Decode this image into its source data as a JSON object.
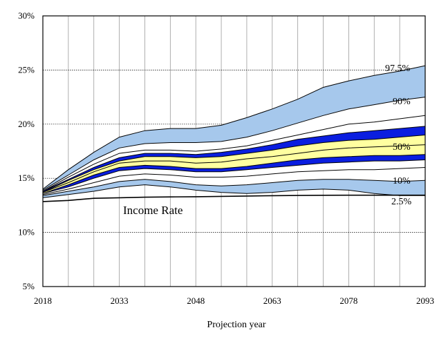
{
  "chart_data": {
    "type": "area",
    "title": "",
    "xlabel": "Projection year",
    "ylabel": "",
    "xlim": [
      2018,
      2093
    ],
    "ylim": [
      5,
      30
    ],
    "x_ticks": [
      "2018",
      "2033",
      "2048",
      "2063",
      "2078",
      "2093"
    ],
    "y_ticks": [
      "5%",
      "10%",
      "15%",
      "20%",
      "25%",
      "30%"
    ],
    "years": [
      2018,
      2023,
      2028,
      2033,
      2038,
      2043,
      2048,
      2053,
      2058,
      2063,
      2068,
      2073,
      2078,
      2083,
      2088,
      2093
    ],
    "series": [
      {
        "name": "97.5%",
        "values": [
          14.0,
          15.8,
          17.4,
          18.8,
          19.4,
          19.6,
          19.6,
          19.9,
          20.6,
          21.4,
          22.3,
          23.4,
          24.0,
          24.5,
          24.9,
          25.4
        ]
      },
      {
        "name": "90%",
        "values": [
          13.9,
          15.3,
          16.7,
          17.8,
          18.2,
          18.3,
          18.3,
          18.4,
          18.8,
          19.4,
          20.1,
          20.8,
          21.4,
          21.8,
          22.2,
          22.5
        ]
      },
      {
        "name": "fine_upper_c",
        "values": [
          13.8,
          15.1,
          16.3,
          17.3,
          17.6,
          17.6,
          17.5,
          17.7,
          18.0,
          18.5,
          19.0,
          19.5,
          20.0,
          20.2,
          20.5,
          20.8
        ]
      },
      {
        "name": "fine_upper_b",
        "values": [
          13.8,
          14.9,
          16.0,
          16.9,
          17.3,
          17.3,
          17.2,
          17.4,
          17.7,
          18.1,
          18.6,
          18.9,
          19.2,
          19.4,
          19.6,
          19.8
        ]
      },
      {
        "name": "fine_upper_a",
        "values": [
          13.7,
          14.8,
          15.8,
          16.6,
          17.0,
          17.0,
          16.9,
          17.0,
          17.3,
          17.6,
          18.0,
          18.3,
          18.5,
          18.6,
          18.8,
          19.0
        ]
      },
      {
        "name": "50%",
        "values": [
          13.7,
          14.6,
          15.6,
          16.4,
          16.6,
          16.6,
          16.4,
          16.5,
          16.8,
          17.0,
          17.3,
          17.6,
          17.8,
          17.9,
          18.0,
          18.1
        ]
      },
      {
        "name": "fine_lower_a",
        "values": [
          13.6,
          14.4,
          15.3,
          16.0,
          16.2,
          16.1,
          15.9,
          15.9,
          16.1,
          16.4,
          16.7,
          16.9,
          17.0,
          17.1,
          17.1,
          17.2
        ]
      },
      {
        "name": "fine_lower_b",
        "values": [
          13.6,
          14.2,
          15.0,
          15.7,
          15.9,
          15.8,
          15.6,
          15.6,
          15.8,
          16.0,
          16.2,
          16.4,
          16.5,
          16.6,
          16.6,
          16.7
        ]
      },
      {
        "name": "fine_lower_c",
        "values": [
          13.5,
          14.0,
          14.6,
          15.2,
          15.4,
          15.3,
          15.1,
          15.1,
          15.2,
          15.4,
          15.6,
          15.7,
          15.8,
          15.8,
          15.9,
          16.0
        ]
      },
      {
        "name": "10%",
        "values": [
          13.4,
          13.8,
          14.2,
          14.7,
          14.9,
          14.7,
          14.4,
          14.3,
          14.4,
          14.6,
          14.8,
          14.9,
          14.9,
          14.8,
          14.7,
          14.8
        ]
      },
      {
        "name": "2.5%",
        "values": [
          13.2,
          13.5,
          13.8,
          14.2,
          14.4,
          14.2,
          13.9,
          13.7,
          13.6,
          13.7,
          13.9,
          14.0,
          13.9,
          13.6,
          13.4,
          13.4
        ]
      },
      {
        "name": "Income Rate",
        "values": [
          12.85,
          12.95,
          13.15,
          13.2,
          13.25,
          13.28,
          13.3,
          13.33,
          13.36,
          13.39,
          13.41,
          13.43,
          13.44,
          13.44,
          13.44,
          13.44
        ]
      }
    ],
    "bands": [
      {
        "from": "2.5%",
        "to": "97.5%",
        "color": "#a6c8ec"
      },
      {
        "from": "10%",
        "to": "90%",
        "color": "#ffffff"
      },
      {
        "from": "fine_lower_b",
        "to": "fine_upper_b",
        "color": "#0a1ee0"
      },
      {
        "from": "fine_lower_a",
        "to": "fine_upper_a",
        "color": "#ffffa0"
      }
    ],
    "annotations": {
      "p975": "97.5%",
      "p90": "90%",
      "p50": "50%",
      "p10": "10%",
      "p25": "2.5%",
      "income": "Income Rate"
    },
    "grid": true
  }
}
